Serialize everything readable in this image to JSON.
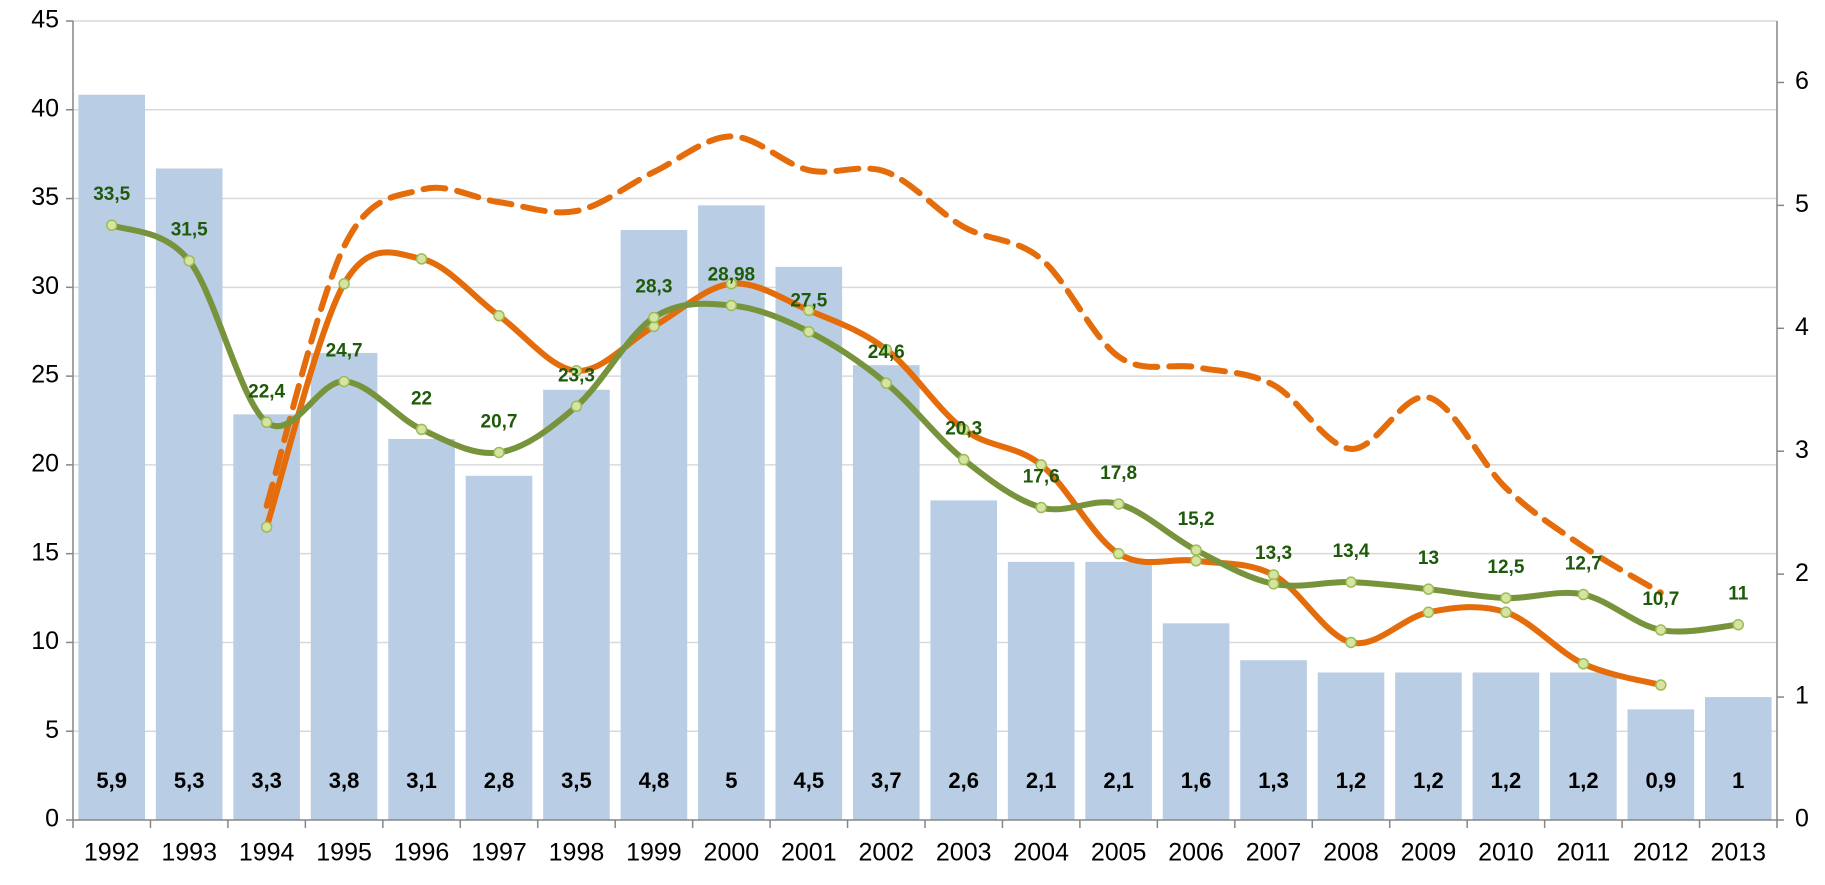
{
  "chart_data": {
    "type": "bar",
    "categories": [
      "1992",
      "1993",
      "1994",
      "1995",
      "1996",
      "1997",
      "1998",
      "1999",
      "2000",
      "2001",
      "2002",
      "2003",
      "2004",
      "2005",
      "2006",
      "2007",
      "2008",
      "2009",
      "2010",
      "2011",
      "2012",
      "2013"
    ],
    "ylim": [
      0,
      45
    ],
    "yticks": [
      0,
      5,
      10,
      15,
      20,
      25,
      30,
      35,
      40,
      45
    ],
    "y2lim": [
      0,
      6.5
    ],
    "y2ticks": [
      0,
      1,
      2,
      3,
      4,
      5,
      6
    ],
    "grid": true,
    "series": [
      {
        "type": "bar",
        "axis": "y2",
        "color": "#b9cde5",
        "label_color": "#000000",
        "values": [
          5.9,
          5.3,
          3.3,
          3.8,
          3.1,
          2.8,
          3.5,
          4.8,
          5,
          4.5,
          3.7,
          2.6,
          2.1,
          2.1,
          1.6,
          1.3,
          1.2,
          1.2,
          1.2,
          1.2,
          0.9,
          1
        ],
        "value_labels": [
          "5,9",
          "5,3",
          "3,3",
          "3,8",
          "3,1",
          "2,8",
          "3,5",
          "4,8",
          "5",
          "4,5",
          "3,7",
          "2,6",
          "2,1",
          "2,1",
          "1,6",
          "1,3",
          "1,2",
          "1,2",
          "1,2",
          "1,2",
          "0,9",
          "1"
        ]
      },
      {
        "type": "line",
        "color": "#e46c0a",
        "dashed": true,
        "markers": false,
        "values": [
          null,
          null,
          17.7,
          32.3,
          35.5,
          34.8,
          34.3,
          36.5,
          38.5,
          36.6,
          36.5,
          33.4,
          31.6,
          26.1,
          25.5,
          24.5,
          20.9,
          23.8,
          18.7,
          15.4,
          12.8,
          null
        ]
      },
      {
        "type": "line",
        "color": "#e46c0a",
        "dashed": false,
        "markers": true,
        "values": [
          null,
          null,
          16.5,
          30.2,
          31.6,
          28.4,
          25.3,
          27.8,
          30.2,
          28.7,
          26.5,
          22.0,
          20.0,
          15.0,
          14.6,
          13.8,
          10.0,
          11.7,
          11.7,
          8.8,
          7.6,
          null
        ]
      },
      {
        "type": "line",
        "color": "#77933c",
        "dashed": false,
        "markers": true,
        "label_color": "#1e5a0a",
        "values": [
          33.5,
          31.5,
          22.4,
          24.7,
          22,
          20.7,
          23.3,
          28.3,
          28.98,
          27.5,
          24.6,
          20.3,
          17.6,
          17.8,
          15.2,
          13.3,
          13.4,
          13,
          12.5,
          12.7,
          10.7,
          11
        ],
        "value_labels": [
          "33,5",
          "31,5",
          "22,4",
          "24,7",
          "22",
          "20,7",
          "23,3",
          "28,3",
          "28,98",
          "27,5",
          "24,6",
          "20,3",
          "17,6",
          "17,8",
          "15,2",
          "13,3",
          "13,4",
          "13",
          "12,5",
          "12,7",
          "10,7",
          "11"
        ]
      }
    ]
  }
}
